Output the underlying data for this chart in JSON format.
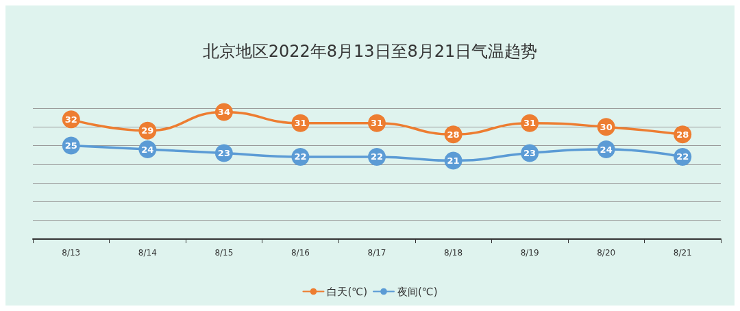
{
  "chart_data": {
    "type": "line",
    "title": "北京地区2022年8月13日至8月21日气温趋势",
    "categories": [
      "8/13",
      "8/14",
      "8/15",
      "8/16",
      "8/17",
      "8/18",
      "8/19",
      "8/20",
      "8/21"
    ],
    "series": [
      {
        "name": "白天(℃)",
        "color": "#ed7d31",
        "values": [
          32,
          29,
          34,
          31,
          31,
          28,
          31,
          30,
          28
        ]
      },
      {
        "name": "夜间(℃)",
        "color": "#5b9bd5",
        "values": [
          25,
          24,
          23,
          22,
          22,
          21,
          23,
          24,
          22
        ]
      }
    ],
    "ylim": [
      0,
      35
    ],
    "yticks": [
      {
        "value": 0,
        "label": null
      },
      {
        "value": 5,
        "label": null
      },
      {
        "value": 10,
        "label": null
      },
      {
        "value": 15,
        "label": null
      },
      {
        "value": 20,
        "label": null
      },
      {
        "value": 25,
        "label": null
      },
      {
        "value": 30,
        "label": null
      },
      {
        "value": 35,
        "label": null
      }
    ],
    "tick_labels": "x",
    "grid": "y",
    "legend": "bottom",
    "marker": "circle",
    "data_labels": true
  }
}
